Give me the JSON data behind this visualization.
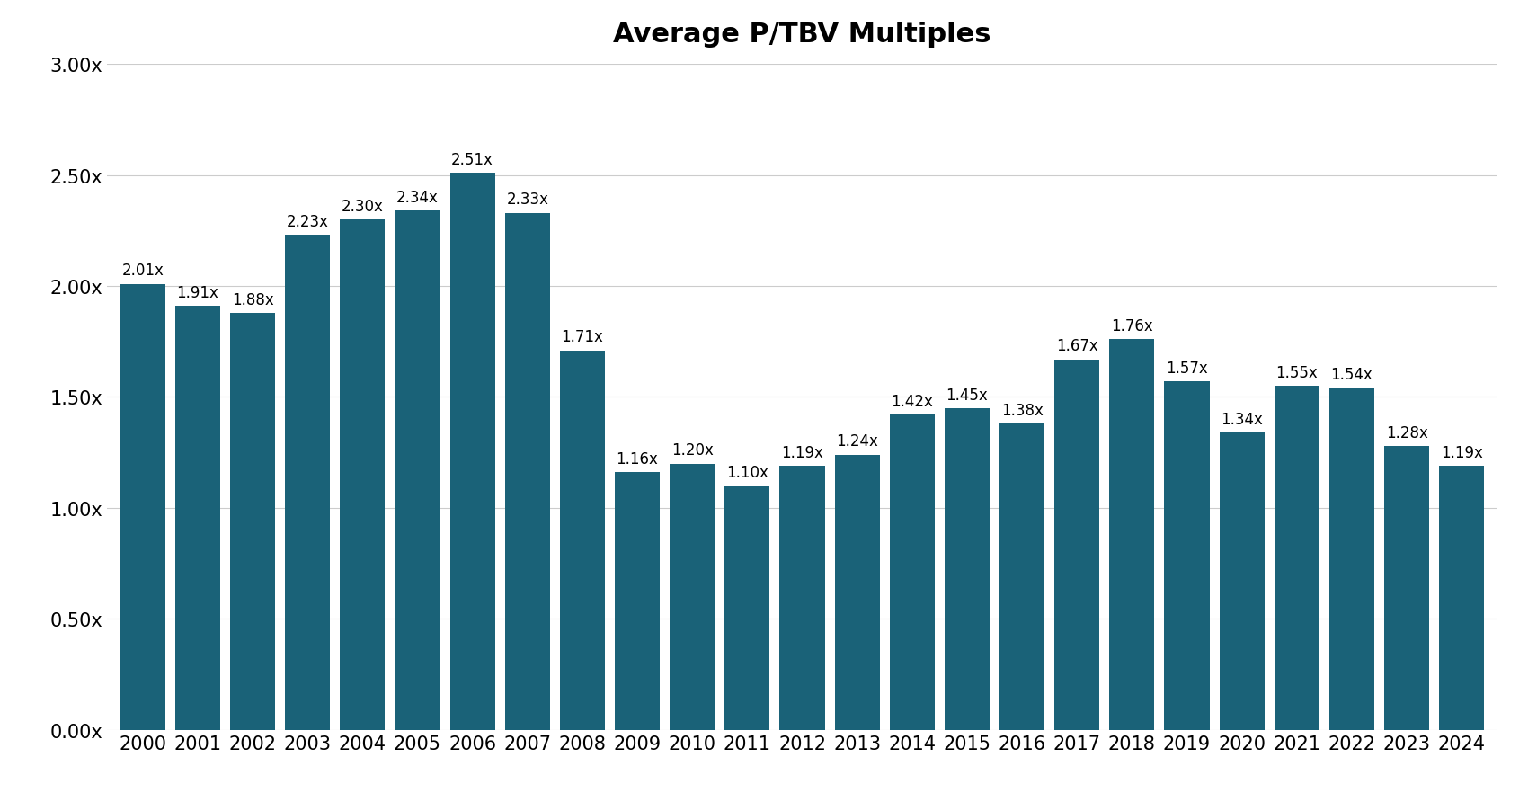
{
  "title": "Average P/TBV Multiples",
  "categories": [
    "2000",
    "2001",
    "2002",
    "2003",
    "2004",
    "2005",
    "2006",
    "2007",
    "2008",
    "2009",
    "2010",
    "2011",
    "2012",
    "2013",
    "2014",
    "2015",
    "2016",
    "2017",
    "2018",
    "2019",
    "2020",
    "2021",
    "2022",
    "2023",
    "2024"
  ],
  "values": [
    2.01,
    1.91,
    1.88,
    2.23,
    2.3,
    2.34,
    2.51,
    2.33,
    1.71,
    1.16,
    1.2,
    1.1,
    1.19,
    1.24,
    1.42,
    1.45,
    1.38,
    1.67,
    1.76,
    1.57,
    1.34,
    1.55,
    1.54,
    1.28,
    1.19
  ],
  "bar_color": "#1a6278",
  "ylim": [
    0.0,
    3.0
  ],
  "yticks": [
    0.0,
    0.5,
    1.0,
    1.5,
    2.0,
    2.5,
    3.0
  ],
  "title_fontsize": 22,
  "label_fontsize": 12,
  "tick_fontsize": 15,
  "background_color": "#ffffff",
  "bar_width": 0.82
}
